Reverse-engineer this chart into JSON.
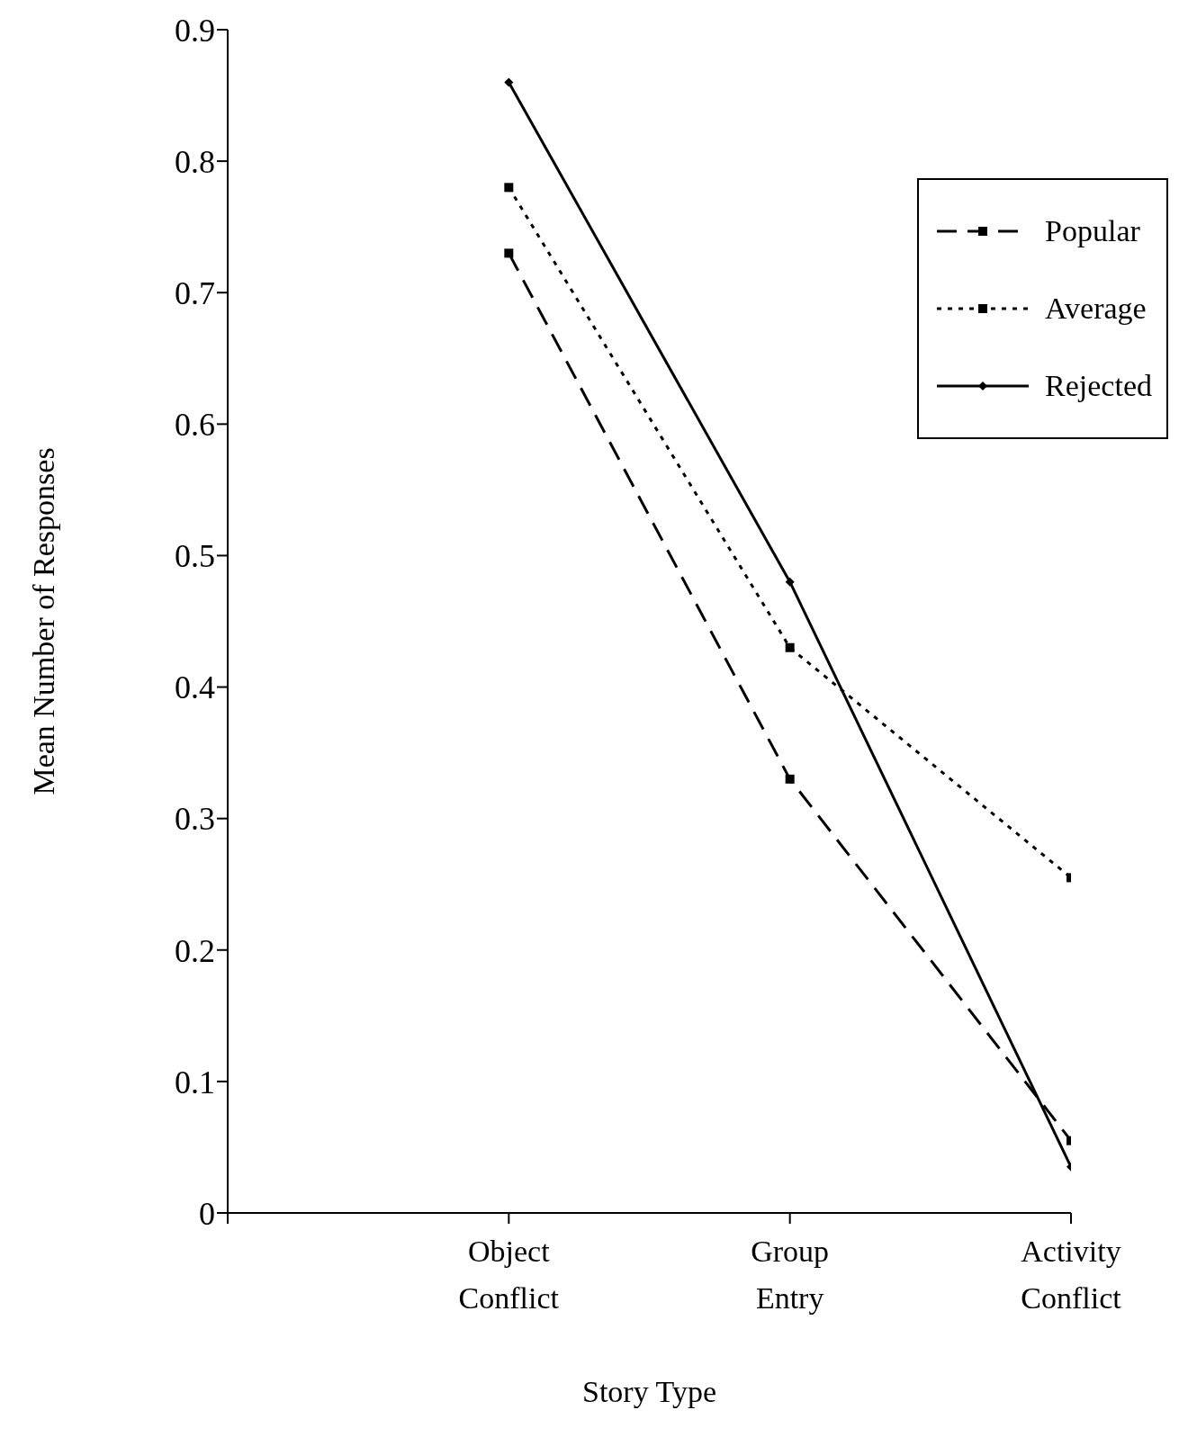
{
  "chart_data": {
    "type": "line",
    "xlabel": "Story Type",
    "ylabel": "Mean Number of Responses",
    "categories": [
      null,
      "Object Conflict",
      "Group Entry",
      "Activity Conflict"
    ],
    "series": [
      {
        "name": "Popular",
        "color": "#000000",
        "values": [
          null,
          0.73,
          0.33,
          0.055
        ],
        "line_style": "dashed",
        "marker": "square"
      },
      {
        "name": "Average",
        "color": "#000000",
        "values": [
          null,
          0.78,
          0.43,
          0.255
        ],
        "line_style": "dotted",
        "marker": "square"
      },
      {
        "name": "Rejected",
        "color": "#000000",
        "values": [
          null,
          0.86,
          0.48,
          0.035
        ],
        "line_style": "solid",
        "marker": "diamond"
      }
    ],
    "ylim": [
      0,
      0.9
    ],
    "yticks": [
      0,
      0.1,
      0.2,
      0.3,
      0.4,
      0.5,
      0.6,
      0.7,
      0.8,
      0.9
    ],
    "grid": false,
    "legend": "top right"
  }
}
